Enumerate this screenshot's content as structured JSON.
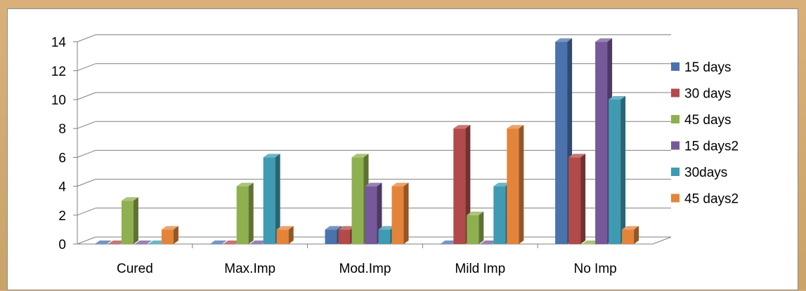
{
  "chart_data": {
    "type": "bar",
    "style": "3d-clustered-column",
    "categories": [
      "Cured",
      "Max.Imp",
      "Mod.Imp",
      "Mild Imp",
      "No Imp"
    ],
    "series": [
      {
        "name": "15 days",
        "color": "#4a72ad",
        "values": [
          0,
          0,
          1,
          0,
          14
        ]
      },
      {
        "name": "30 days",
        "color": "#b14a48",
        "values": [
          0,
          0,
          1,
          8,
          6
        ]
      },
      {
        "name": "45 days",
        "color": "#8fb04f",
        "values": [
          3,
          4,
          6,
          2,
          0
        ]
      },
      {
        "name": "15 days2",
        "color": "#76599a",
        "values": [
          0,
          0,
          4,
          0,
          14
        ]
      },
      {
        "name": "30days",
        "color": "#3e9bb2",
        "values": [
          0,
          6,
          1,
          4,
          10
        ]
      },
      {
        "name": "45 days2",
        "color": "#e4843a",
        "values": [
          1,
          1,
          4,
          8,
          1
        ]
      }
    ],
    "y_ticks": [
      "0",
      "2",
      "4",
      "6",
      "8",
      "10",
      "12",
      "14"
    ],
    "ylim": [
      0,
      14
    ],
    "grid": true,
    "legend_position": "right"
  }
}
